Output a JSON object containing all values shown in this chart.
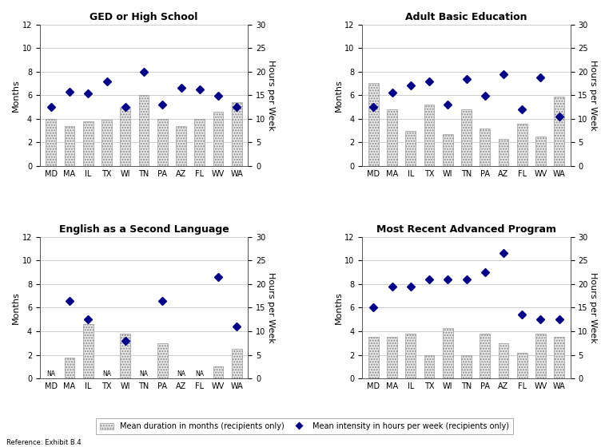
{
  "states": [
    "MD",
    "MA",
    "IL",
    "TX",
    "WI",
    "TN",
    "PA",
    "AZ",
    "FL",
    "WV",
    "WA"
  ],
  "panels": [
    {
      "title": "GED or High School",
      "bars": [
        4.0,
        3.4,
        3.8,
        3.9,
        5.0,
        6.0,
        4.0,
        3.4,
        4.0,
        4.6,
        5.4
      ],
      "diamonds": [
        12.5,
        15.8,
        15.3,
        18.0,
        12.5,
        20.0,
        13.0,
        16.5,
        16.3,
        14.8,
        12.5
      ],
      "na_states": []
    },
    {
      "title": "Adult Basic Education",
      "bars": [
        7.0,
        4.8,
        3.0,
        5.2,
        2.7,
        4.8,
        3.2,
        2.3,
        3.6,
        2.5,
        5.9
      ],
      "diamonds": [
        12.5,
        15.5,
        17.0,
        18.0,
        13.0,
        18.5,
        14.8,
        19.5,
        12.0,
        18.8,
        10.5
      ],
      "na_states": []
    },
    {
      "title": "English as a Second Language",
      "bars": [
        0,
        1.8,
        4.6,
        0,
        3.8,
        0,
        3.0,
        0,
        0,
        1.0,
        2.5
      ],
      "diamonds": [
        null,
        16.5,
        12.5,
        null,
        8.0,
        null,
        16.5,
        null,
        null,
        21.5,
        11.0
      ],
      "na_states": [
        "MD",
        "TX",
        "TN",
        "AZ",
        "FL"
      ]
    },
    {
      "title": "Most Recent Advanced Program",
      "bars": [
        3.5,
        3.5,
        3.8,
        2.0,
        4.3,
        2.0,
        3.8,
        3.0,
        2.2,
        3.8,
        3.5
      ],
      "diamonds": [
        15.0,
        19.5,
        19.5,
        21.0,
        21.0,
        21.0,
        22.5,
        26.5,
        13.5,
        12.5,
        12.5
      ],
      "na_states": []
    }
  ],
  "bar_facecolor": "#e8e8e8",
  "bar_edgecolor": "#888888",
  "bar_hatch": ".....",
  "diamond_color": "#00008B",
  "ylim_months": [
    0,
    12
  ],
  "ylim_hours": [
    0,
    30
  ],
  "yticks_months": [
    0,
    2,
    4,
    6,
    8,
    10,
    12
  ],
  "yticks_hours": [
    0,
    5,
    10,
    15,
    20,
    25,
    30
  ],
  "ylabel_left": "Months",
  "ylabel_right": "Hours per Week",
  "legend_bar_label": "Mean duration in months (recipients only)",
  "legend_diamond_label": "Mean intensity in hours per week (recipients only)",
  "reference_text": "Reference: Exhibit B.4",
  "background_color": "#ffffff",
  "title_fontsize": 9,
  "tick_fontsize": 7,
  "label_fontsize": 8,
  "grid_color": "#bbbbbb",
  "grid_linewidth": 0.5
}
